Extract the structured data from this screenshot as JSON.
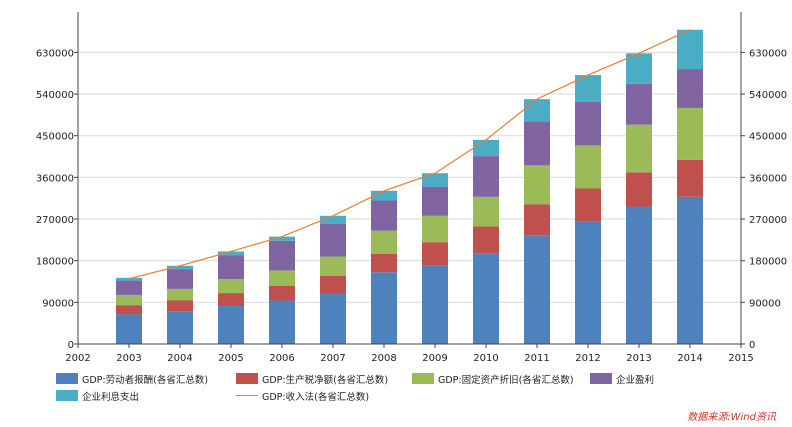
{
  "chart_data": {
    "type": "bar",
    "stacked": true,
    "categories": [
      "2003",
      "2004",
      "2005",
      "2006",
      "2007",
      "2008",
      "2009",
      "2010",
      "2011",
      "2012",
      "2013",
      "2014"
    ],
    "x_axis_ticks": [
      "2002",
      "2003",
      "2004",
      "2005",
      "2006",
      "2007",
      "2008",
      "2009",
      "2010",
      "2011",
      "2012",
      "2013",
      "2014",
      "2015"
    ],
    "y_axis_ticks": [
      "0",
      "90000",
      "180000",
      "270000",
      "360000",
      "450000",
      "540000",
      "630000"
    ],
    "ylim": [
      0,
      700000
    ],
    "grid": true,
    "secondary_y_axis": true,
    "series": [
      {
        "name": "GDP:劳动者报酬(各省汇总数)",
        "color": "#4F81BD",
        "values": [
          64000,
          71000,
          82000,
          94000,
          109000,
          155000,
          170000,
          196000,
          234000,
          264000,
          297000,
          318000
        ]
      },
      {
        "name": "GDP:生产税净额(各省汇总数)",
        "color": "#C0504D",
        "values": [
          20000,
          23000,
          28000,
          32000,
          38000,
          40000,
          50000,
          58000,
          68000,
          72000,
          74000,
          80000
        ]
      },
      {
        "name": "GDP:固定资产折旧(各省汇总数)",
        "color": "#9BBB59",
        "values": [
          22000,
          25000,
          30000,
          33000,
          42000,
          50000,
          57000,
          64000,
          84000,
          93000,
          103000,
          112000
        ]
      },
      {
        "name": "企业盈利",
        "color": "#8064A2",
        "values": [
          31000,
          42000,
          52000,
          64000,
          71000,
          65000,
          63000,
          88000,
          95000,
          94000,
          88000,
          84000
        ]
      },
      {
        "name": "企业利息支出",
        "color": "#4BACC6",
        "values": [
          6000,
          8000,
          8000,
          9000,
          17000,
          21000,
          29000,
          35000,
          48000,
          58000,
          66000,
          85000
        ]
      }
    ],
    "line_series": {
      "name": "GDP:收入法(各省汇总数)",
      "color": "#ED7D31",
      "values": [
        141000,
        169000,
        200000,
        232000,
        277000,
        331000,
        369000,
        441000,
        529000,
        581000,
        628000,
        679000
      ]
    },
    "legend_position": "bottom",
    "source_note": "数据来源:Wind资讯"
  }
}
